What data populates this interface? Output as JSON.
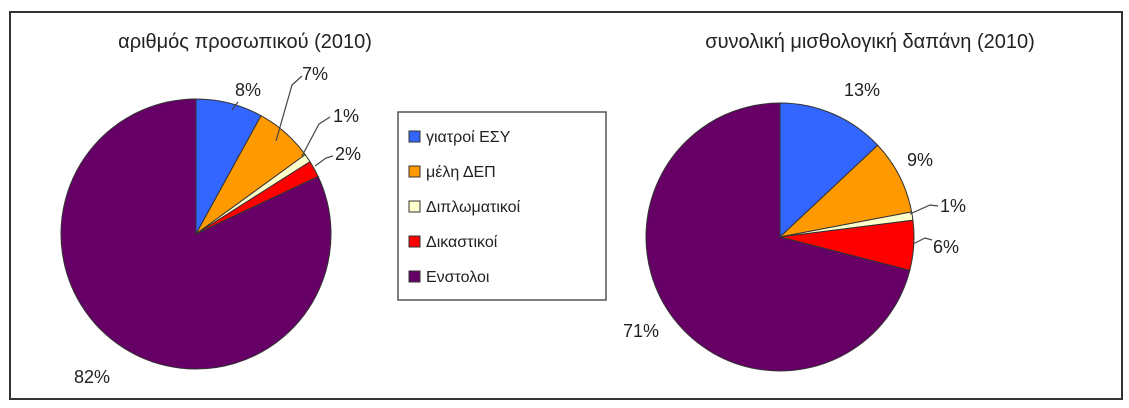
{
  "colors": {
    "background": "#ffffff",
    "frame": "#333333",
    "legend_border": "#555555",
    "callout_line": "#444444"
  },
  "legend": {
    "items": [
      {
        "label": "γιατροί ΕΣΥ",
        "color": "#3366ff"
      },
      {
        "label": "μέλη ΔΕΠ",
        "color": "#ff9900"
      },
      {
        "label": "Διπλωματικοί",
        "color": "#ffffcc"
      },
      {
        "label": "Δικαστικοί",
        "color": "#ff0000"
      },
      {
        "label": "Ενστολοι",
        "color": "#660066"
      }
    ]
  },
  "chart_data": [
    {
      "type": "pie",
      "title": "αριθμός προσωπικού (2010)",
      "categories": [
        "γιατροί ΕΣΥ",
        "μέλη ΔΕΠ",
        "Διπλωματικοί",
        "Δικαστικοί",
        "Ενστολοι"
      ],
      "values": [
        8,
        7,
        1,
        2,
        82
      ],
      "labels": [
        "8%",
        "7%",
        "1%",
        "2%",
        "82%"
      ]
    },
    {
      "type": "pie",
      "title": "συνολική μισθολογική δαπάνη (2010)",
      "categories": [
        "γιατροί ΕΣΥ",
        "μέλη ΔΕΠ",
        "Διπλωματικοί",
        "Δικαστικοί",
        "Ενστολοι"
      ],
      "values": [
        13,
        9,
        1,
        6,
        71
      ],
      "labels": [
        "13%",
        "9%",
        "1%",
        "6%",
        "71%"
      ]
    }
  ]
}
